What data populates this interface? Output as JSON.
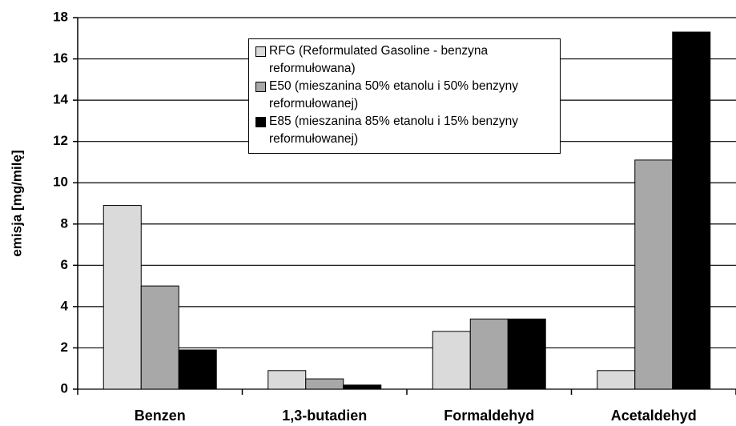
{
  "chart_data": {
    "type": "bar",
    "y_label": "emisja [mg/milę]",
    "categories": [
      "Benzen",
      "1,3-butadien",
      "Formaldehyd",
      "Acetaldehyd"
    ],
    "series": [
      {
        "name": "RFG (Reformulated Gasoline - benzyna reformułowana)",
        "color": "#dadada",
        "values": [
          8.9,
          0.9,
          2.8,
          0.9
        ]
      },
      {
        "name": "E50 (mieszanina 50% etanolu i 50% benzyny reformułowanej)",
        "color": "#a8a8a8",
        "values": [
          5.0,
          0.5,
          3.4,
          11.1
        ]
      },
      {
        "name": "E85 (mieszanina 85% etanolu i 15% benzyny reformułowanej)",
        "color": "#000000",
        "values": [
          1.9,
          0.2,
          3.4,
          17.3
        ]
      }
    ],
    "ylim": [
      0,
      18
    ],
    "yticks": [
      0,
      2,
      4,
      6,
      8,
      10,
      12,
      14,
      16,
      18
    ],
    "grid": true,
    "legend": "top"
  }
}
